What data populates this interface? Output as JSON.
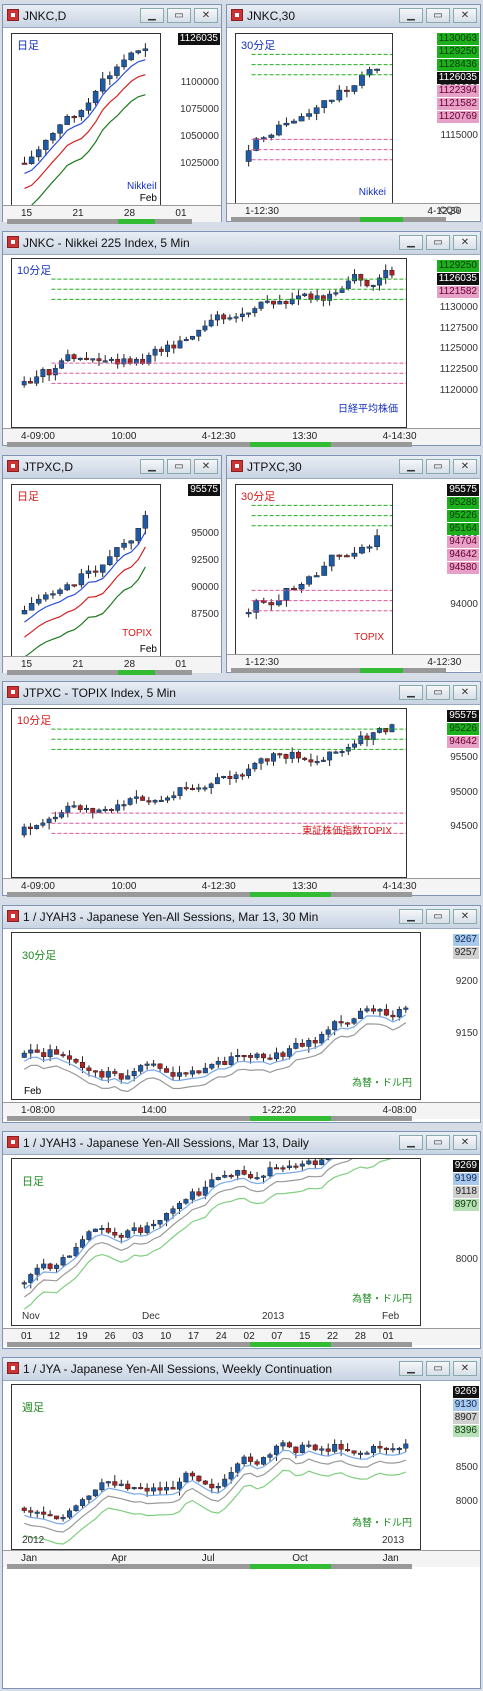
{
  "colors": {
    "up": "#1f5aa6",
    "down": "#b22222",
    "green": "#1db01d",
    "pink": "#e0559a",
    "blue_line": "#2b4fd6",
    "red_line": "#d42222",
    "dkgreen_line": "#1d7a1d",
    "tag_black": "#111111"
  },
  "windows": [
    {
      "id": "w1",
      "title": "JNKC,D",
      "period_label": "日足",
      "period_color": "#1530c0",
      "index_label": "NikkeiI",
      "index_color": "#1530c0",
      "month_label": "Feb",
      "y_ticks": [
        "1100000",
        "1075000",
        "1050000",
        "1025000"
      ],
      "tags": [
        {
          "text": "1126035",
          "bg": "#111111",
          "fg": "#ffffff"
        }
      ],
      "x_ticks": [
        "15",
        "21",
        "28",
        "01"
      ],
      "chart_data": {
        "type": "candlestick",
        "series": [
          {
            "name": "price",
            "ohlc": [
              [
                1062000,
                1070000,
                1055000,
                1063000
              ],
              [
                1063000,
                1075000,
                1060000,
                1072000
              ],
              [
                1072000,
                1080000,
                1068000,
                1078000
              ],
              [
                1078000,
                1088000,
                1075000,
                1086000
              ],
              [
                1086000,
                1090000,
                1074000,
                1077000
              ],
              [
                1077000,
                1082000,
                1064000,
                1066000
              ],
              [
                1066000,
                1075000,
                1060000,
                1072000
              ],
              [
                1072000,
                1088000,
                1070000,
                1085000
              ],
              [
                1085000,
                1086000,
                1066000,
                1068000
              ],
              [
                1068000,
                1073000,
                1050000,
                1052000
              ],
              [
                1052000,
                1066000,
                1046000,
                1062000
              ],
              [
                1062000,
                1080000,
                1060000,
                1078000
              ],
              [
                1078000,
                1090000,
                1075000,
                1088000
              ],
              [
                1088000,
                1102000,
                1086000,
                1100000
              ],
              [
                1100000,
                1112000,
                1096000,
                1110000
              ],
              [
                1110000,
                1122000,
                1108000,
                1120000
              ],
              [
                1120000,
                1128000,
                1116000,
                1124000
              ],
              [
                1124000,
                1130000,
                1120000,
                1126035
              ]
            ]
          }
        ],
        "ylim": [
          1015000,
          1140000
        ]
      }
    },
    {
      "id": "w2",
      "title": "JNKC,30",
      "period_label": "30分足",
      "period_color": "#1530c0",
      "index_label": "Nikkei",
      "index_color": "#1530c0",
      "month_label": "",
      "y_ticks": [
        "1120000",
        "1115000"
      ],
      "tags": [
        {
          "text": "1130063",
          "bg": "#1db01d",
          "fg": "#0a3a0a"
        },
        {
          "text": "1129250",
          "bg": "#1db01d",
          "fg": "#0a3a0a"
        },
        {
          "text": "1128436",
          "bg": "#1db01d",
          "fg": "#0a3a0a"
        },
        {
          "text": "1126035",
          "bg": "#111111",
          "fg": "#ffffff"
        },
        {
          "text": "1122394",
          "bg": "#e7a0c8",
          "fg": "#6a0030"
        },
        {
          "text": "1121582",
          "bg": "#e7a0c8",
          "fg": "#6a0030"
        },
        {
          "text": "1120769",
          "bg": "#e7a0c8",
          "fg": "#6a0030"
        }
      ],
      "x_ticks": [
        "1-12:30",
        "4-12:30"
      ],
      "footer_note": "CQG"
    },
    {
      "id": "w3",
      "title": "JNKC - Nikkei 225 Index, 5 Min",
      "period_label": "10分足",
      "period_color": "#1530c0",
      "index_label": "日経平均株価",
      "index_color": "#1530c0",
      "month_label": "",
      "y_ticks": [
        "1130000",
        "1127500",
        "1125000",
        "1122500",
        "1120000"
      ],
      "tags": [
        {
          "text": "1129250",
          "bg": "#1db01d",
          "fg": "#0a3a0a"
        },
        {
          "text": "1126035",
          "bg": "#111111",
          "fg": "#ffffff"
        },
        {
          "text": "1121582",
          "bg": "#e7a0c8",
          "fg": "#6a0030"
        }
      ],
      "x_ticks": [
        "4-09:00",
        "10:00",
        "4-12:30",
        "13:30",
        "4-14:30"
      ]
    },
    {
      "id": "w4",
      "title": "JTPXC,D",
      "period_label": "日足",
      "period_color": "#d41a1a",
      "index_label": "TOPIX",
      "index_color": "#d41a1a",
      "month_label": "Feb",
      "y_ticks": [
        "95000",
        "92500",
        "90000",
        "87500"
      ],
      "tags": [
        {
          "text": "95575",
          "bg": "#111111",
          "fg": "#ffffff"
        }
      ],
      "x_ticks": [
        "15",
        "21",
        "28",
        "01"
      ]
    },
    {
      "id": "w5",
      "title": "JTPXC,30",
      "period_label": "30分足",
      "period_color": "#d41a1a",
      "index_label": "TOPIX",
      "index_color": "#d41a1a",
      "month_label": "",
      "y_ticks": [
        "95000",
        "94500",
        "94000"
      ],
      "tags": [
        {
          "text": "95575",
          "bg": "#111111",
          "fg": "#ffffff"
        },
        {
          "text": "95288",
          "bg": "#1db01d",
          "fg": "#0a3a0a"
        },
        {
          "text": "95226",
          "bg": "#1db01d",
          "fg": "#0a3a0a"
        },
        {
          "text": "95164",
          "bg": "#1db01d",
          "fg": "#0a3a0a"
        },
        {
          "text": "94704",
          "bg": "#e7a0c8",
          "fg": "#6a0030"
        },
        {
          "text": "94642",
          "bg": "#e7a0c8",
          "fg": "#6a0030"
        },
        {
          "text": "94580",
          "bg": "#e7a0c8",
          "fg": "#6a0030"
        }
      ],
      "x_ticks": [
        "1-12:30",
        "4-12:30"
      ]
    },
    {
      "id": "w6",
      "title": "JTPXC - TOPIX Index, 5 Min",
      "period_label": "10分足",
      "period_color": "#d41a1a",
      "index_label": "東証株価指数TOPIX",
      "index_color": "#d41a1a",
      "month_label": "",
      "y_ticks": [
        "95500",
        "95000",
        "94500"
      ],
      "tags": [
        {
          "text": "95575",
          "bg": "#111111",
          "fg": "#ffffff"
        },
        {
          "text": "95226",
          "bg": "#1db01d",
          "fg": "#0a3a0a"
        },
        {
          "text": "94642",
          "bg": "#e7a0c8",
          "fg": "#6a0030"
        }
      ],
      "x_ticks": [
        "4-09:00",
        "10:00",
        "4-12:30",
        "13:30",
        "4-14:30"
      ]
    },
    {
      "id": "w7",
      "title": "1 / JYAH3 - Japanese Yen-All Sessions, Mar 13, 30 Min",
      "period_label": "30分足",
      "period_color": "#1d8a1d",
      "index_label": "為替・ドル円",
      "index_color": "#1d8a1d",
      "month_label": "Feb",
      "y_ticks": [
        "9200",
        "9150"
      ],
      "tags": [
        {
          "text": "9267",
          "bg": "#a8c8ec",
          "fg": "#0a2a5a"
        },
        {
          "text": "9257",
          "bg": "#d0d0d0",
          "fg": "#222222"
        }
      ],
      "x_ticks": [
        "1-08:00",
        "14:00",
        "1-22:20",
        "4-08:00"
      ]
    },
    {
      "id": "w8",
      "title": "1 / JYAH3 - Japanese Yen-All Sessions, Mar 13, Daily",
      "period_label": "日足",
      "period_color": "#1d8a1d",
      "index_label": "為替・ドル円",
      "index_color": "#1d8a1d",
      "month_label": "",
      "y_ticks": [
        "8500",
        "8000"
      ],
      "month_ticks": [
        "Nov",
        "Dec",
        "2013",
        "Feb"
      ],
      "tags": [
        {
          "text": "9269",
          "bg": "#111111",
          "fg": "#ffffff"
        },
        {
          "text": "9199",
          "bg": "#a8c8ec",
          "fg": "#0a2a5a"
        },
        {
          "text": "9118",
          "bg": "#d0d0d0",
          "fg": "#222222"
        },
        {
          "text": "8970",
          "bg": "#b6e0b6",
          "fg": "#0a3a0a"
        }
      ],
      "x_ticks": [
        "01",
        "12",
        "19",
        "26",
        "03",
        "10",
        "17",
        "24",
        "02",
        "07",
        "15",
        "22",
        "28",
        "01"
      ]
    },
    {
      "id": "w9",
      "title": "1 / JYA - Japanese Yen-All Sessions, Weekly Continuation",
      "period_label": "週足",
      "period_color": "#1d8a1d",
      "index_label": "為替・ドル円",
      "index_color": "#1d8a1d",
      "month_label": "",
      "y_ticks": [
        "9000",
        "8500",
        "8000"
      ],
      "month_ticks": [
        "2012",
        "2013"
      ],
      "tags": [
        {
          "text": "9269",
          "bg": "#111111",
          "fg": "#ffffff"
        },
        {
          "text": "9130",
          "bg": "#a8c8ec",
          "fg": "#0a2a5a"
        },
        {
          "text": "8907",
          "bg": "#d0d0d0",
          "fg": "#222222"
        },
        {
          "text": "8396",
          "bg": "#b6e0b6",
          "fg": "#0a3a0a"
        }
      ],
      "x_ticks": [
        "Jan",
        "Apr",
        "Jul",
        "Oct",
        "Jan"
      ]
    }
  ]
}
